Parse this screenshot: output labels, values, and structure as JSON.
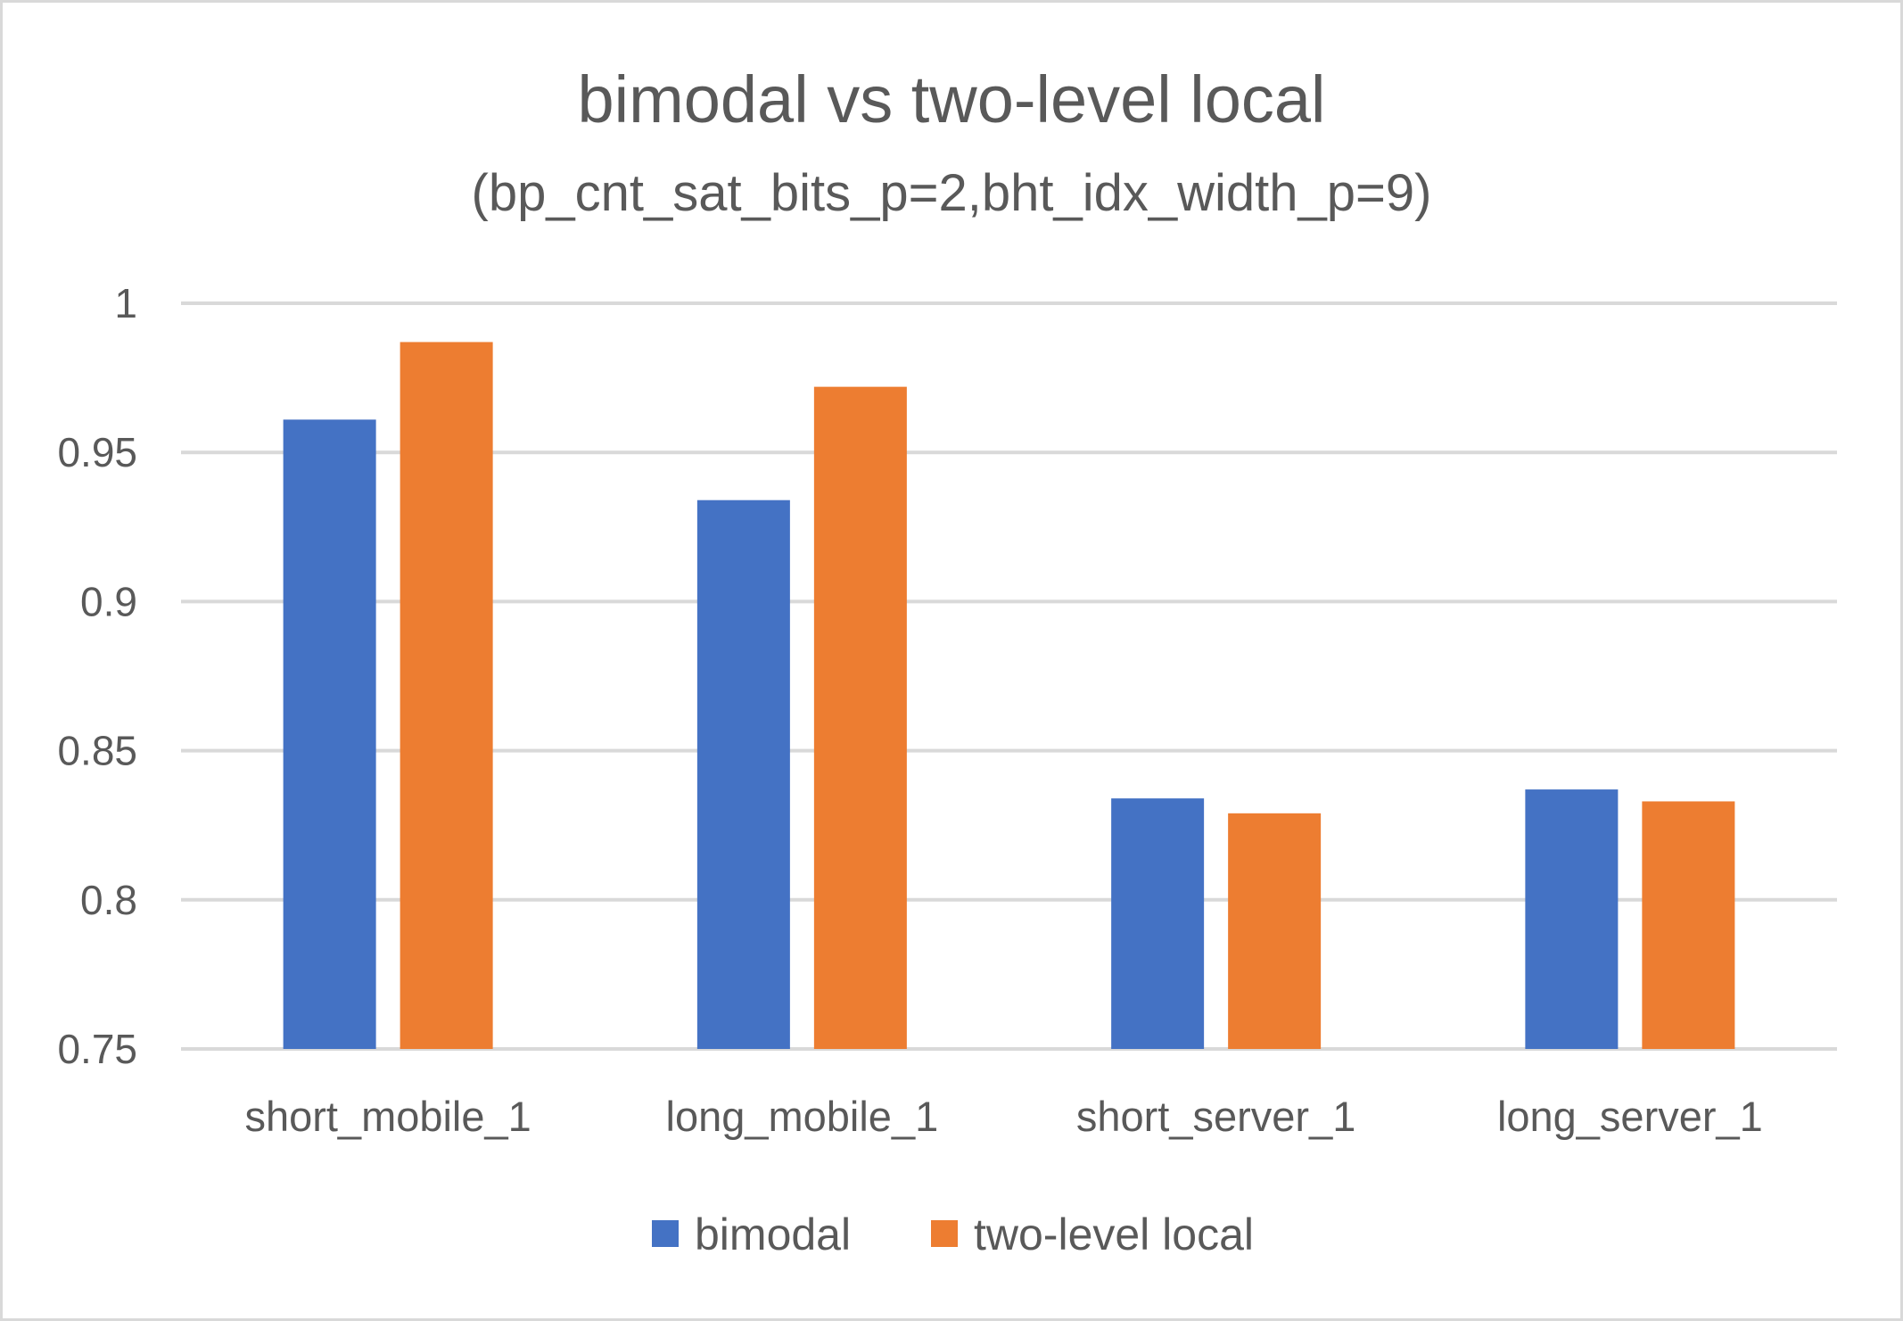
{
  "chart_data": {
    "type": "bar",
    "title": "bimodal vs two-level local",
    "subtitle": "(bp_cnt_sat_bits_p=2,bht_idx_width_p=9)",
    "categories": [
      "short_mobile_1",
      "long_mobile_1",
      "short_server_1",
      "long_server_1"
    ],
    "series": [
      {
        "name": "bimodal",
        "color": "#4472C4",
        "values": [
          0.961,
          0.934,
          0.834,
          0.837
        ]
      },
      {
        "name": "two-level local",
        "color": "#ED7D31",
        "values": [
          0.987,
          0.972,
          0.829,
          0.833
        ]
      }
    ],
    "ylim": [
      0.75,
      1
    ],
    "yticks": [
      0.75,
      0.8,
      0.85,
      0.9,
      0.95,
      1
    ],
    "ytick_labels": [
      "0.75",
      "0.8",
      "0.85",
      "0.9",
      "0.95",
      "1"
    ],
    "xlabel": "",
    "ylabel": "",
    "grid": true,
    "legend_position": "bottom"
  }
}
